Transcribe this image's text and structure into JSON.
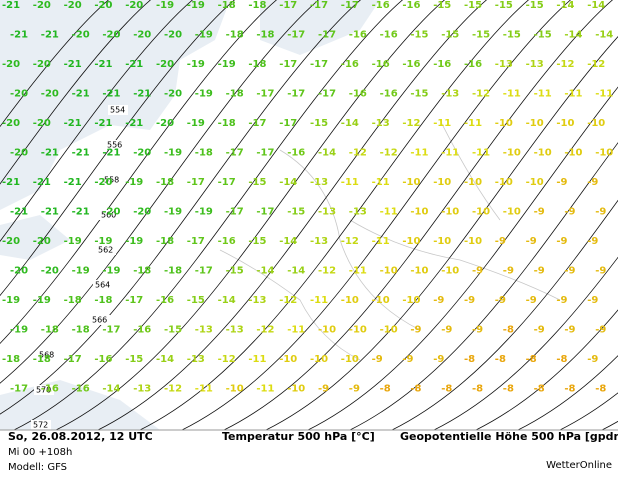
{
  "map": {
    "temperature_rows": [
      [
        -21,
        -20,
        -20,
        -20,
        -20,
        -19,
        -19,
        -18,
        -18,
        -17,
        -17,
        -17,
        -16,
        -16,
        -15,
        -15,
        -15,
        -15,
        -14,
        -14
      ],
      [
        -21,
        -21,
        -20,
        -20,
        -20,
        -20,
        -19,
        -18,
        -18,
        -17,
        -17,
        -16,
        -16,
        -15,
        -15,
        -15,
        -15,
        -15,
        -14,
        -14
      ],
      [
        -20,
        -20,
        -21,
        -21,
        -21,
        -20,
        -19,
        -19,
        -18,
        -17,
        -17,
        -16,
        -16,
        -16,
        -16,
        -16,
        -13,
        -13,
        -12,
        -12
      ],
      [
        -20,
        -20,
        -21,
        -21,
        -21,
        -20,
        -19,
        -18,
        -17,
        -17,
        -17,
        -16,
        -16,
        -15,
        -13,
        -12,
        -11,
        -11,
        -11,
        -11
      ],
      [
        -20,
        -20,
        -21,
        -21,
        -21,
        -20,
        -19,
        -18,
        -17,
        -17,
        -15,
        -14,
        -13,
        -12,
        -11,
        -11,
        -10,
        -10,
        -10,
        -10
      ],
      [
        -20,
        -21,
        -21,
        -21,
        -20,
        -19,
        -18,
        -17,
        -17,
        -16,
        -14,
        -12,
        -12,
        -11,
        -11,
        -11,
        -10,
        -10,
        -10,
        -10
      ],
      [
        -21,
        -21,
        -21,
        -20,
        -19,
        -18,
        -17,
        -17,
        -15,
        -14,
        -13,
        -11,
        -11,
        -10,
        -10,
        -10,
        -10,
        -10,
        -9,
        -9
      ],
      [
        -21,
        -21,
        -21,
        -20,
        -20,
        -19,
        -19,
        -17,
        -17,
        -15,
        -13,
        -13,
        -11,
        -10,
        -10,
        -10,
        -10,
        -9,
        -9,
        -9
      ],
      [
        -20,
        -20,
        -19,
        -19,
        -19,
        -18,
        -17,
        -16,
        -15,
        -14,
        -13,
        -12,
        -11,
        -10,
        -10,
        -10,
        -9,
        -9,
        -9,
        -9
      ],
      [
        -20,
        -20,
        -19,
        -19,
        -18,
        -18,
        -17,
        -15,
        -14,
        -14,
        -12,
        -11,
        -10,
        -10,
        -10,
        -9,
        -9,
        -9,
        -9,
        -9
      ],
      [
        -19,
        -19,
        -18,
        -18,
        -17,
        -16,
        -15,
        -14,
        -13,
        -12,
        -11,
        -10,
        -10,
        -10,
        -9,
        -9,
        -9,
        -9,
        -9,
        -9
      ],
      [
        -19,
        -18,
        -18,
        -17,
        -16,
        -15,
        -13,
        -13,
        -12,
        -11,
        -10,
        -10,
        -10,
        -9,
        -9,
        -9,
        -8,
        -9,
        -9,
        -9
      ],
      [
        -18,
        -18,
        -17,
        -16,
        -15,
        -14,
        -13,
        -12,
        -11,
        -10,
        -10,
        -10,
        -9,
        -9,
        -9,
        -8,
        -8,
        -8,
        -8,
        -9
      ],
      [
        -17,
        -16,
        -16,
        -14,
        -13,
        -12,
        -11,
        -10,
        -11,
        -10,
        -9,
        -9,
        -8,
        -8,
        -8,
        -8,
        -8,
        -8,
        -8,
        -8
      ]
    ],
    "contour_labels": [
      554,
      556,
      558,
      560,
      562,
      564,
      566,
      568,
      570,
      572
    ],
    "footer": {
      "date": "So, 26.08.2012, 12 UTC",
      "run": "Mi 00 +108h",
      "model": "Modell: GFS",
      "parameter": "Temperatur 500 hPa [°C]",
      "contours": "Geopotentielle Höhe 500 hPa [gpdm]",
      "brand": "WetterOnline"
    }
  }
}
